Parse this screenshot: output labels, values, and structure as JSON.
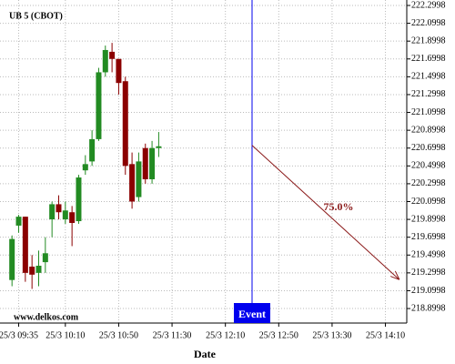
{
  "chart_data": {
    "type": "candlestick",
    "title": "UB 5 (CBOT)",
    "x_label": "Date",
    "watermark": "www.delkos.com",
    "x": [
      "25/3 09:30",
      "25/3 09:35",
      "25/3 09:40",
      "25/3 09:45",
      "25/3 09:50",
      "25/3 09:55",
      "25/3 10:00",
      "25/3 10:05",
      "25/3 10:10",
      "25/3 10:15",
      "25/3 10:20",
      "25/3 10:25",
      "25/3 10:30",
      "25/3 10:35",
      "25/3 10:40",
      "25/3 10:45",
      "25/3 10:50",
      "25/3 10:55",
      "25/3 11:00",
      "25/3 11:05",
      "25/3 11:10",
      "25/3 11:15",
      "25/3 11:20"
    ],
    "open": [
      219.22,
      219.83,
      219.93,
      219.37,
      219.3,
      219.42,
      219.9,
      220.07,
      219.9,
      219.98,
      219.88,
      220.45,
      220.55,
      220.8,
      221.55,
      221.78,
      221.7,
      221.45,
      220.52,
      220.15,
      220.7,
      220.35,
      220.7
    ],
    "high": [
      219.72,
      219.95,
      219.93,
      219.5,
      219.55,
      219.7,
      220.1,
      220.17,
      220.1,
      220.05,
      220.4,
      220.62,
      220.9,
      221.6,
      221.85,
      221.88,
      221.7,
      221.5,
      220.65,
      220.65,
      220.75,
      220.78,
      220.88
    ],
    "low": [
      219.15,
      219.75,
      219.2,
      219.12,
      219.15,
      219.3,
      219.7,
      219.9,
      219.85,
      219.6,
      219.85,
      220.4,
      220.5,
      220.78,
      221.5,
      221.55,
      221.3,
      220.4,
      220.02,
      220.1,
      220.3,
      220.3,
      220.6
    ],
    "close": [
      219.68,
      219.93,
      219.3,
      219.28,
      219.38,
      219.52,
      220.07,
      219.98,
      220.0,
      219.86,
      220.37,
      220.52,
      220.8,
      221.55,
      221.8,
      221.7,
      221.43,
      220.5,
      220.1,
      220.55,
      220.35,
      220.7,
      220.72
    ],
    "up_color": "#228b22",
    "down_color": "#8b0000",
    "xlim": [
      "25/3 09:21",
      "25/3 14:26"
    ],
    "xticks": [
      "25/3 09:35",
      "25/3 10:10",
      "25/3 10:50",
      "25/3 11:30",
      "25/3 12:10",
      "25/3 12:50",
      "25/3 13:30",
      "25/3 14:10"
    ],
    "ylim": [
      218.737,
      222.361
    ],
    "yticks": [
      218.8998,
      219.0998,
      219.2998,
      219.4998,
      219.6998,
      219.8998,
      220.0998,
      220.2998,
      220.4998,
      220.6998,
      220.8998,
      221.0998,
      221.2998,
      221.4998,
      221.6998,
      221.8998,
      222.0998,
      222.2998
    ],
    "grid": true,
    "event": {
      "x": "25/3 12:30",
      "label": "Event",
      "color": "#0000ee"
    },
    "projection": {
      "x": [
        "25/3 12:30",
        "25/3 14:20"
      ],
      "values": [
        220.73,
        219.23
      ],
      "label": "75.0%",
      "color": "#8b1a1a"
    }
  }
}
